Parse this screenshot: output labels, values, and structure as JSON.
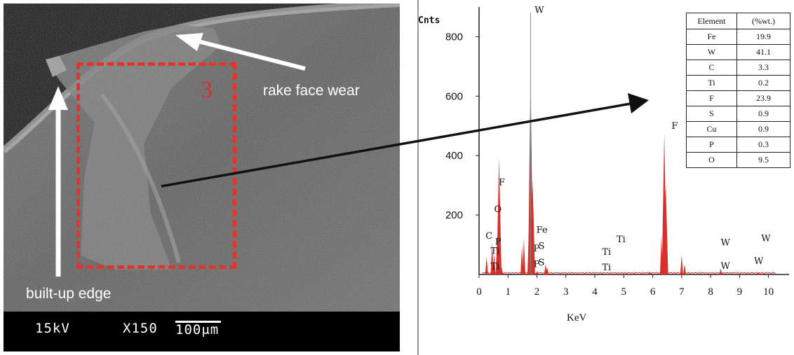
{
  "sem": {
    "voltage": "15kV",
    "magnification": "X150",
    "scale": "100μm",
    "label_rake": "rake face wear",
    "label_bue": "built-up edge",
    "region_number": "3"
  },
  "chart_data": {
    "type": "bar",
    "title": "",
    "ylabel": "Cnts",
    "xlabel": "KeV",
    "xlim": [
      0,
      10.3
    ],
    "ylim": [
      0,
      900
    ],
    "x_ticks": [
      "0",
      "1",
      "2",
      "3",
      "4",
      "5",
      "6",
      "7",
      "8",
      "9",
      "10"
    ],
    "y_ticks": [
      "200",
      "400",
      "600",
      "800"
    ],
    "bar_color": "#d8302a",
    "series": [
      {
        "values": [
          {
            "x": 0.26,
            "y": 60
          },
          {
            "x": 0.45,
            "y": 110
          },
          {
            "x": 0.52,
            "y": 70
          },
          {
            "x": 0.62,
            "y": 110
          },
          {
            "x": 0.69,
            "y": 395
          },
          {
            "x": 0.78,
            "y": 25
          },
          {
            "x": 1.48,
            "y": 95
          },
          {
            "x": 1.55,
            "y": 122
          },
          {
            "x": 1.72,
            "y": 150
          },
          {
            "x": 1.78,
            "y": 680
          },
          {
            "x": 1.85,
            "y": 320
          },
          {
            "x": 2.01,
            "y": 12
          },
          {
            "x": 2.3,
            "y": 35
          },
          {
            "x": 2.35,
            "y": 25
          },
          {
            "x": 3.7,
            "y": 3
          },
          {
            "x": 4.5,
            "y": 3
          },
          {
            "x": 5.0,
            "y": 5
          },
          {
            "x": 5.9,
            "y": 10
          },
          {
            "x": 6.3,
            "y": 130
          },
          {
            "x": 6.4,
            "y": 475
          },
          {
            "x": 6.45,
            "y": 300
          },
          {
            "x": 7.0,
            "y": 65
          },
          {
            "x": 7.1,
            "y": 35
          },
          {
            "x": 8.35,
            "y": 20
          },
          {
            "x": 9.65,
            "y": 8
          }
        ]
      }
    ],
    "peak_labels": [
      {
        "text": "W",
        "x": 1.92,
        "y": 880
      },
      {
        "text": "F",
        "x": 0.68,
        "y": 300
      },
      {
        "text": "O",
        "x": 0.52,
        "y": 210
      },
      {
        "text": "C",
        "x": 0.22,
        "y": 120
      },
      {
        "text": "Ti",
        "x": 0.4,
        "y": 70
      },
      {
        "text": "Ti",
        "x": 0.4,
        "y": 18
      },
      {
        "text": "P",
        "x": 0.55,
        "y": 100
      },
      {
        "text": "Fe",
        "x": 1.98,
        "y": 140
      },
      {
        "text": "P",
        "x": 1.88,
        "y": 78
      },
      {
        "text": "S",
        "x": 2.05,
        "y": 86
      },
      {
        "text": "P",
        "x": 1.88,
        "y": 25
      },
      {
        "text": "S",
        "x": 2.05,
        "y": 31
      },
      {
        "text": "Ti",
        "x": 4.75,
        "y": 108
      },
      {
        "text": "Ti",
        "x": 4.25,
        "y": 66
      },
      {
        "text": "Ti",
        "x": 4.25,
        "y": 14
      },
      {
        "text": "F",
        "x": 6.65,
        "y": 490
      },
      {
        "text": "W",
        "x": 8.35,
        "y": 98
      },
      {
        "text": "W",
        "x": 8.35,
        "y": 19
      },
      {
        "text": "W",
        "x": 9.75,
        "y": 112
      },
      {
        "text": "W",
        "x": 9.5,
        "y": 35
      }
    ],
    "table": {
      "headers": [
        "Element",
        "(%wt.)"
      ],
      "rows": [
        [
          "Fe",
          "19.9"
        ],
        [
          "W",
          "41.1"
        ],
        [
          "C",
          "3.3"
        ],
        [
          "Ti",
          "0.2"
        ],
        [
          "F",
          "23.9"
        ],
        [
          "S",
          "0.9"
        ],
        [
          "Cu",
          "0.9"
        ],
        [
          "P",
          "0.3"
        ],
        [
          "O",
          "9.5"
        ]
      ]
    }
  }
}
